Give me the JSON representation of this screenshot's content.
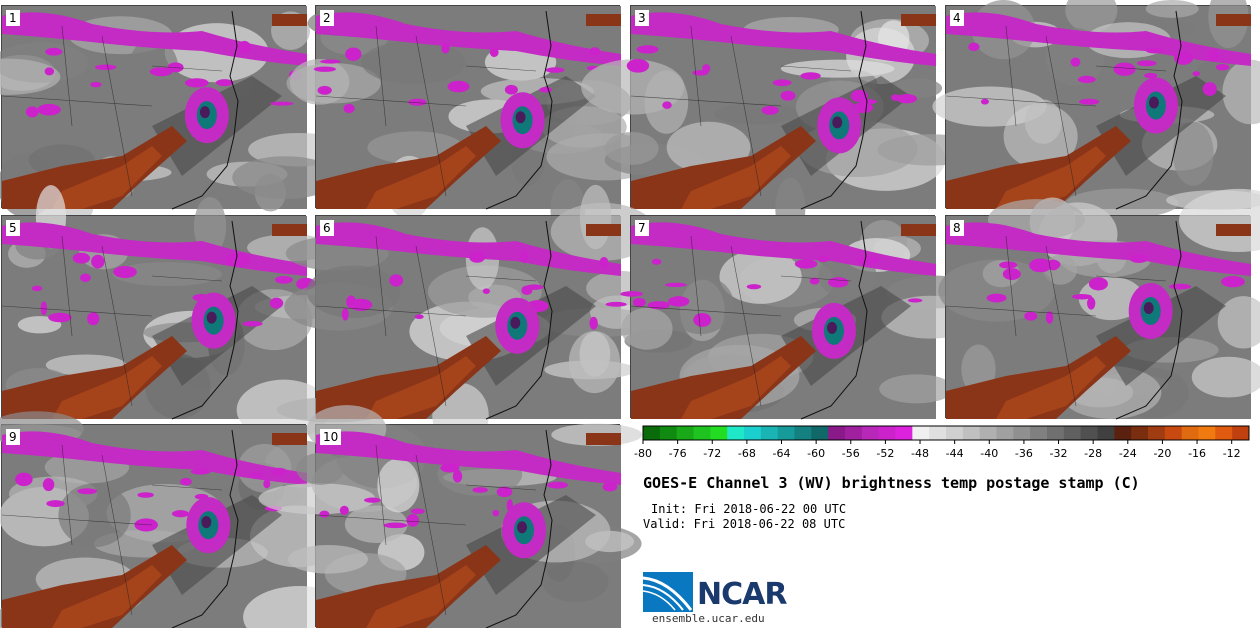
{
  "panels": [
    "1",
    "2",
    "3",
    "4",
    "5",
    "6",
    "7",
    "8",
    "9",
    "10"
  ],
  "chart_data": {
    "type": "heatmap",
    "title": "GOES-E Channel 3 (WV) brightness temp postage stamp (C)",
    "init": "Init: Fri 2018-06-22 00 UTC",
    "valid": "Valid: Fri 2018-06-22 08 UTC",
    "colorbar": {
      "ticks": [
        "-80",
        "-76",
        "-72",
        "-68",
        "-64",
        "-60",
        "-56",
        "-52",
        "-48",
        "-44",
        "-40",
        "-36",
        "-32",
        "-28",
        "-24",
        "-20",
        "-16",
        "-12"
      ],
      "range": [
        -80,
        -10
      ],
      "colors": [
        "#0a6b0a",
        "#118a11",
        "#18a818",
        "#1fc31f",
        "#22dd22",
        "#1fe8c8",
        "#1ccfcf",
        "#1ab4b4",
        "#179a9a",
        "#148080",
        "#116868",
        "#8a1a8a",
        "#a020a0",
        "#b828b8",
        "#cc22cc",
        "#dd22dd",
        "#f0f0f0",
        "#e0e0e0",
        "#d0d0d0",
        "#c0c0c0",
        "#b0b0b0",
        "#a0a0a0",
        "#909090",
        "#808080",
        "#707070",
        "#606060",
        "#505050",
        "#404040",
        "#5a2010",
        "#7a2e10",
        "#a03c12",
        "#c84a10",
        "#e06a10",
        "#f07a10",
        "#e05a10",
        "#c04010"
      ]
    }
  },
  "logo": {
    "text": "NCAR",
    "site": "ensemble.ucar.edu",
    "color": "#1a3a6e"
  }
}
